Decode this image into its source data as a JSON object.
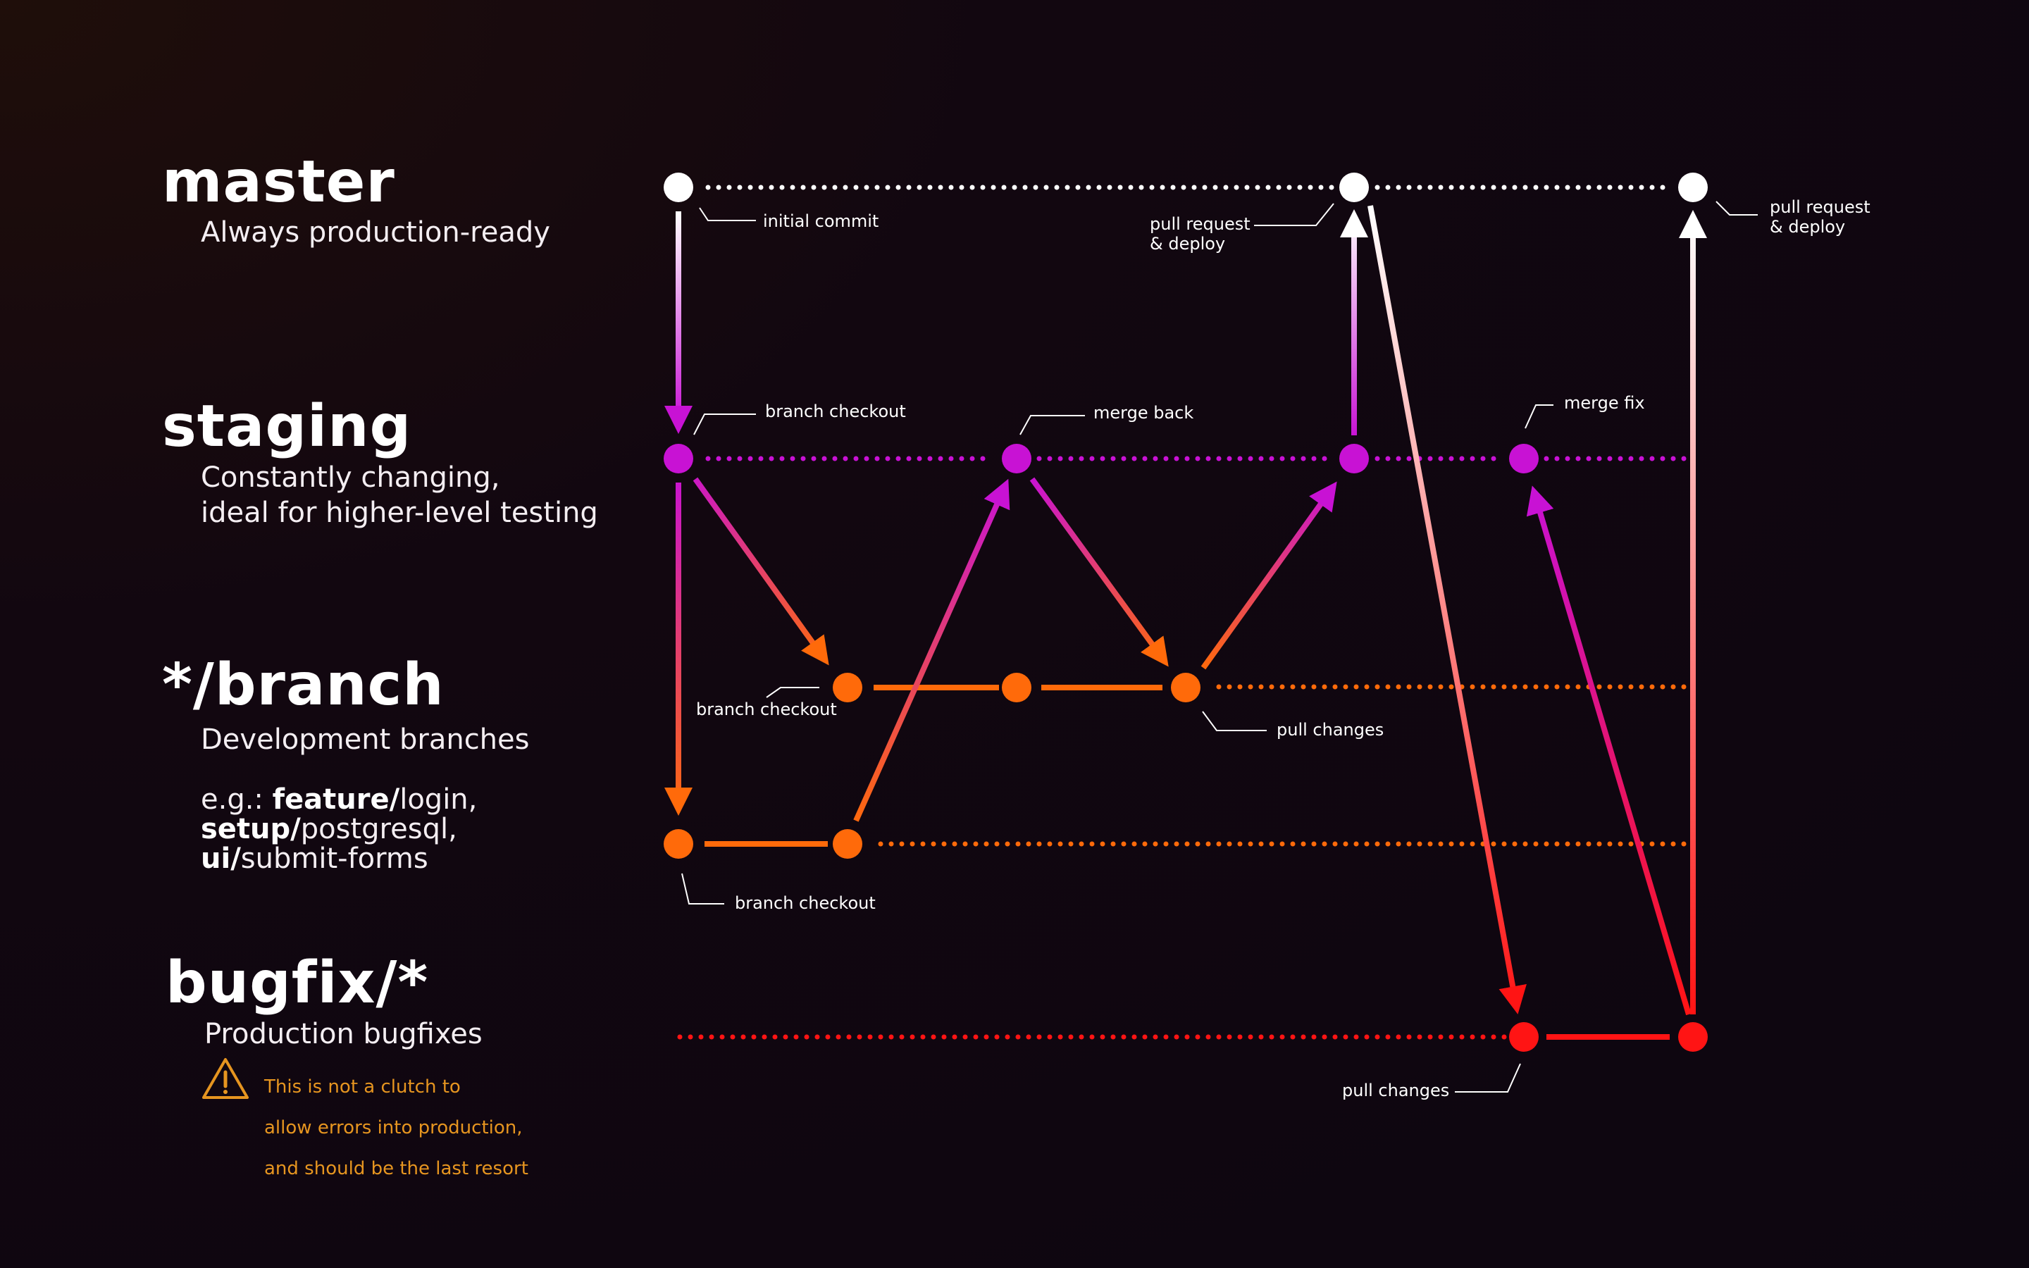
{
  "lanes": {
    "master": {
      "title": "master",
      "description": "Always production-ready"
    },
    "staging": {
      "title": "staging",
      "description_line1": "Constantly changing,",
      "description_line2": "ideal for higher-level testing"
    },
    "branch": {
      "title": "*/branch",
      "description": "Development branches",
      "examples": {
        "prefix": "e.g.: ",
        "ex1_bold": "feature/",
        "ex1_rest": "login,",
        "ex2_bold": "setup/",
        "ex2_rest": "postgresql,",
        "ex3_bold": "ui/",
        "ex3_rest": "submit-forms"
      }
    },
    "bugfix": {
      "title": "bugfix/*",
      "description": "Production bugfixes",
      "warning_line1": "This is not a clutch to",
      "warning_line2": "allow errors into production,",
      "warning_line3": "and should be the last resort"
    }
  },
  "annotations": {
    "initial_commit": "initial commit",
    "pull_request_deploy_1_line1": "pull request",
    "pull_request_deploy_1_line2": "& deploy",
    "pull_request_deploy_2_line1": "pull request",
    "pull_request_deploy_2_line2": "& deploy",
    "staging_branch_checkout": "branch checkout",
    "merge_back": "merge back",
    "merge_fix": "merge fix",
    "branch_a_checkout": "branch checkout",
    "pull_changes_branch": "pull changes",
    "branch_b_checkout": "branch checkout",
    "pull_changes_bugfix": "pull changes"
  },
  "colors": {
    "master": "#ffffff",
    "staging": "#c812d4",
    "branch": "#ff6a0a",
    "bugfix": "#ff1414",
    "warning": "#e69520"
  }
}
